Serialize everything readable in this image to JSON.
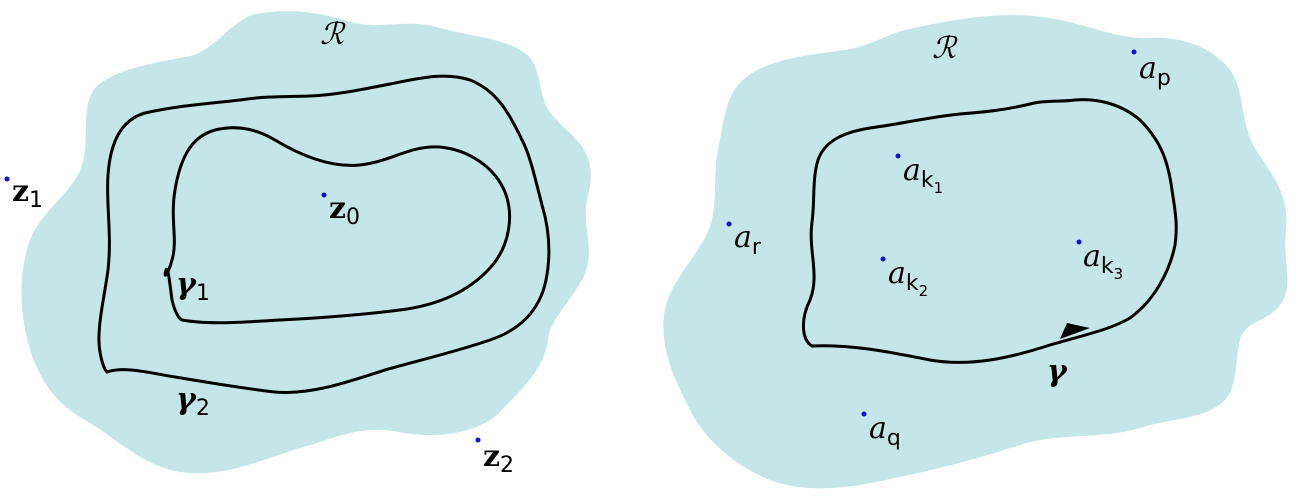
{
  "left": {
    "region_label": "ℛ",
    "points": [
      {
        "name": "z",
        "sub": "0"
      },
      {
        "name": "z",
        "sub": "1"
      },
      {
        "name": "z",
        "sub": "2"
      }
    ],
    "curves": [
      {
        "name": "γ",
        "sub": "1"
      },
      {
        "name": "γ",
        "sub": "2"
      }
    ]
  },
  "right": {
    "region_label": "ℛ",
    "points": [
      {
        "name": "a",
        "sub": "p",
        "sub2": ""
      },
      {
        "name": "a",
        "sub": "k",
        "sub2": "1"
      },
      {
        "name": "a",
        "sub": "r",
        "sub2": ""
      },
      {
        "name": "a",
        "sub": "k",
        "sub2": "2"
      },
      {
        "name": "a",
        "sub": "k",
        "sub2": "3"
      },
      {
        "name": "a",
        "sub": "q",
        "sub2": ""
      }
    ],
    "curve": {
      "name": "γ"
    }
  },
  "colors": {
    "region": "#c5e6e8",
    "point": "#1010d8",
    "curve": "#000000"
  }
}
